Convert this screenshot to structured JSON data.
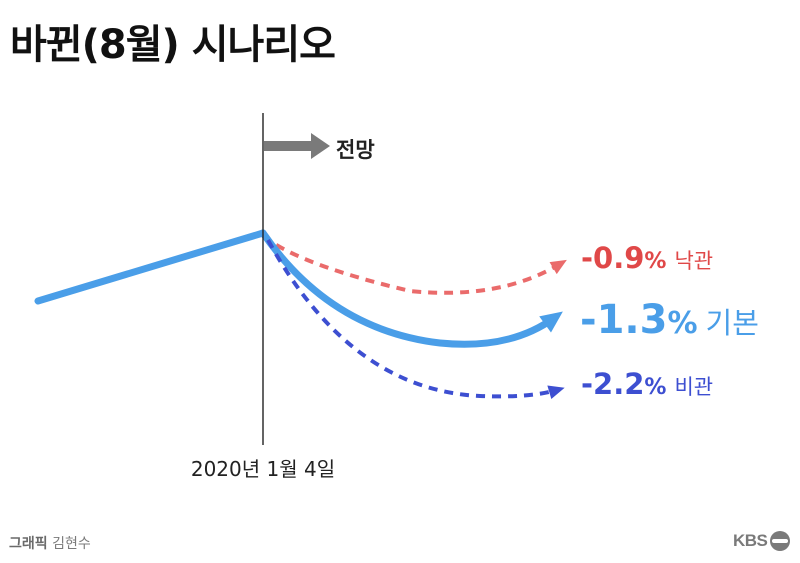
{
  "title": "바뀐(8월) 시나리오",
  "credit": {
    "label": "그래픽",
    "author": "김현수"
  },
  "logo": {
    "text": "KBS"
  },
  "chart_data": {
    "type": "line",
    "title": "바뀐(8월) 시나리오",
    "xlabel": "",
    "ylabel": "",
    "marker_label": "2020년 1월 4일",
    "forecast_label": "전망",
    "series": [
      {
        "name": "낙관",
        "value": "-0.9%",
        "label_value": "-0.9",
        "label_unit": "%",
        "color": "#ea6b6b",
        "style": "dashed"
      },
      {
        "name": "기본",
        "value": "-1.3%",
        "label_value": "-1.3",
        "label_unit": "%",
        "color": "#4a9ee8",
        "style": "solid"
      },
      {
        "name": "비관",
        "value": "-2.2%",
        "label_value": "-2.2",
        "label_unit": "%",
        "color": "#3d4fd1",
        "style": "dashed"
      }
    ],
    "colors": {
      "history": "#4a9ee8",
      "marker": "#222222",
      "forecast_arrow": "#7a7a7a"
    }
  }
}
